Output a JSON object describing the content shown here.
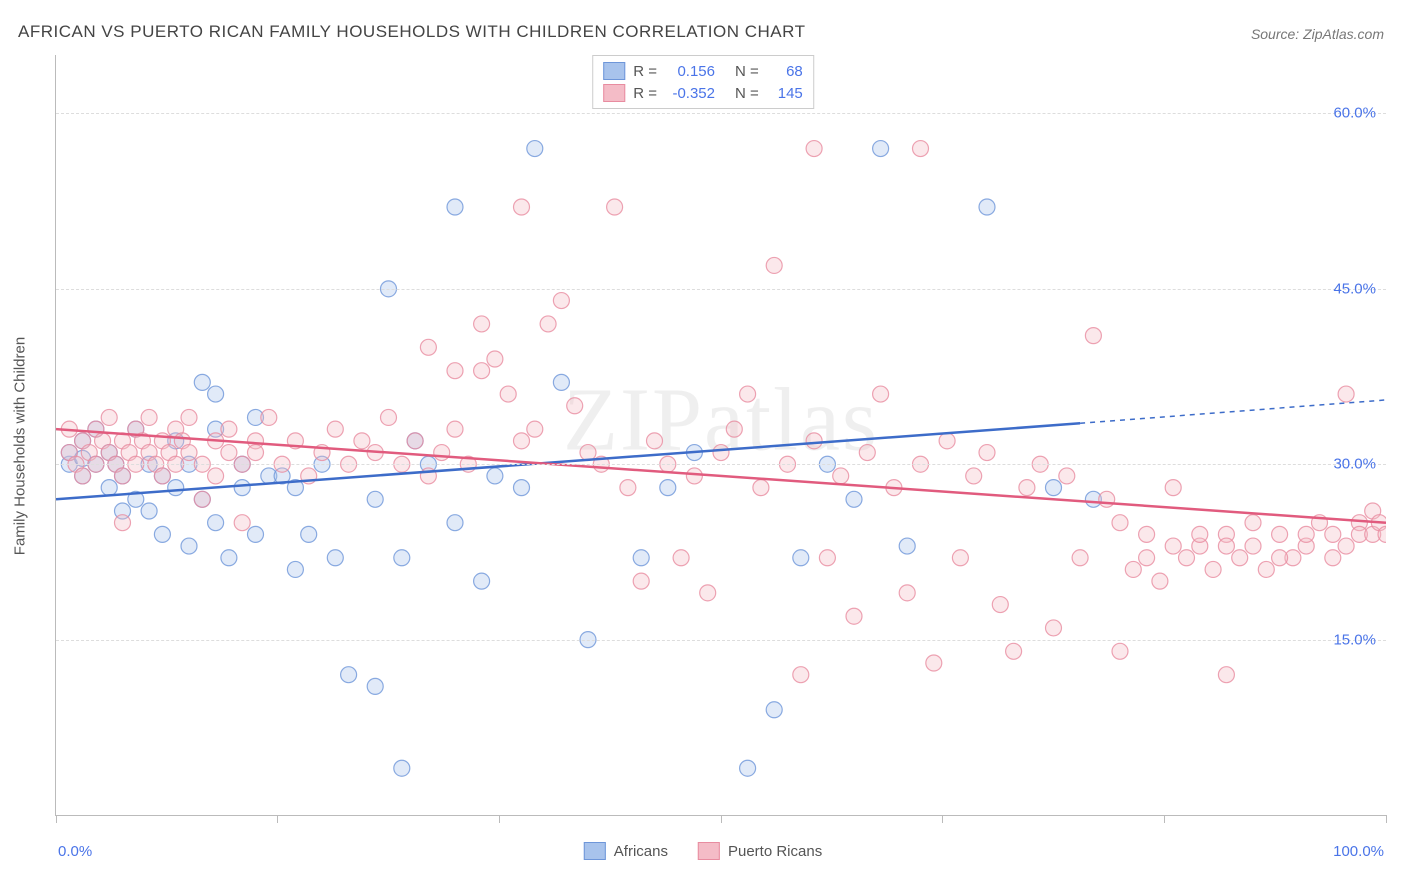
{
  "title": "AFRICAN VS PUERTO RICAN FAMILY HOUSEHOLDS WITH CHILDREN CORRELATION CHART",
  "source": "Source: ZipAtlas.com",
  "watermark": "ZIPatlas",
  "ylabel": "Family Households with Children",
  "chart": {
    "type": "scatter",
    "background_color": "#ffffff",
    "grid_color": "#dddddd",
    "axis_color": "#bbbbbb",
    "label_color": "#4a74e8",
    "text_color": "#555555",
    "xlim": [
      0,
      100
    ],
    "ylim": [
      0,
      65
    ],
    "yticks": [
      15,
      30,
      45,
      60
    ],
    "ytick_labels": [
      "15.0%",
      "30.0%",
      "45.0%",
      "60.0%"
    ],
    "xticks": [
      0,
      16.6,
      33.3,
      50,
      66.6,
      83.3,
      100
    ],
    "xtick_labels_shown": {
      "0": "0.0%",
      "100": "100.0%"
    },
    "marker_radius": 8,
    "series": [
      {
        "name": "Africans",
        "fill": "#a8c3ec",
        "stroke": "#6e96d9",
        "R": "0.156",
        "N": "68",
        "trend": {
          "x1": 0,
          "y1": 27,
          "x2": 77,
          "y2": 33.5,
          "x2_dash": 100,
          "y2_dash": 35.5,
          "color": "#3d6cc9",
          "width": 2.5
        },
        "points": [
          [
            1,
            30
          ],
          [
            1,
            31
          ],
          [
            2,
            29
          ],
          [
            2,
            32
          ],
          [
            2,
            30.5
          ],
          [
            3,
            30
          ],
          [
            3,
            33
          ],
          [
            4,
            28
          ],
          [
            4,
            31
          ],
          [
            4.5,
            30
          ],
          [
            5,
            29
          ],
          [
            5,
            26
          ],
          [
            6,
            27
          ],
          [
            6,
            33
          ],
          [
            7,
            26
          ],
          [
            7,
            30
          ],
          [
            8,
            24
          ],
          [
            8,
            29
          ],
          [
            9,
            28
          ],
          [
            9,
            32
          ],
          [
            10,
            30
          ],
          [
            10,
            23
          ],
          [
            11,
            27
          ],
          [
            11,
            37
          ],
          [
            12,
            25
          ],
          [
            12,
            36
          ],
          [
            12,
            33
          ],
          [
            13,
            22
          ],
          [
            14,
            28
          ],
          [
            14,
            30
          ],
          [
            15,
            24
          ],
          [
            15,
            34
          ],
          [
            16,
            29
          ],
          [
            17,
            29
          ],
          [
            18,
            21
          ],
          [
            18,
            28
          ],
          [
            19,
            24
          ],
          [
            20,
            30
          ],
          [
            21,
            22
          ],
          [
            22,
            12
          ],
          [
            24,
            11
          ],
          [
            24,
            27
          ],
          [
            25,
            45
          ],
          [
            26,
            22
          ],
          [
            26,
            4
          ],
          [
            27,
            32
          ],
          [
            28,
            30
          ],
          [
            30,
            52
          ],
          [
            30,
            25
          ],
          [
            32,
            20
          ],
          [
            33,
            29
          ],
          [
            35,
            28
          ],
          [
            36,
            57
          ],
          [
            38,
            37
          ],
          [
            40,
            15
          ],
          [
            44,
            22
          ],
          [
            46,
            28
          ],
          [
            48,
            31
          ],
          [
            52,
            4
          ],
          [
            54,
            9
          ],
          [
            56,
            22
          ],
          [
            58,
            30
          ],
          [
            60,
            27
          ],
          [
            62,
            57
          ],
          [
            64,
            23
          ],
          [
            70,
            52
          ],
          [
            75,
            28
          ],
          [
            78,
            27
          ]
        ]
      },
      {
        "name": "Puerto Ricans",
        "fill": "#f4bcc7",
        "stroke": "#e88ca0",
        "R": "-0.352",
        "N": "145",
        "trend": {
          "x1": 0,
          "y1": 33,
          "x2": 100,
          "y2": 25,
          "color": "#e15b7e",
          "width": 2.5
        },
        "points": [
          [
            1,
            31
          ],
          [
            1,
            33
          ],
          [
            1.5,
            30
          ],
          [
            2,
            32
          ],
          [
            2,
            29
          ],
          [
            2.5,
            31
          ],
          [
            3,
            33
          ],
          [
            3,
            30
          ],
          [
            3.5,
            32
          ],
          [
            4,
            31
          ],
          [
            4,
            34
          ],
          [
            4.5,
            30
          ],
          [
            5,
            32
          ],
          [
            5,
            29
          ],
          [
            5,
            25
          ],
          [
            5.5,
            31
          ],
          [
            6,
            33
          ],
          [
            6,
            30
          ],
          [
            6.5,
            32
          ],
          [
            7,
            31
          ],
          [
            7,
            34
          ],
          [
            7.5,
            30
          ],
          [
            8,
            32
          ],
          [
            8,
            29
          ],
          [
            8.5,
            31
          ],
          [
            9,
            33
          ],
          [
            9,
            30
          ],
          [
            9.5,
            32
          ],
          [
            10,
            31
          ],
          [
            10,
            34
          ],
          [
            11,
            30
          ],
          [
            11,
            27
          ],
          [
            12,
            32
          ],
          [
            12,
            29
          ],
          [
            13,
            31
          ],
          [
            13,
            33
          ],
          [
            14,
            30
          ],
          [
            14,
            25
          ],
          [
            15,
            32
          ],
          [
            15,
            31
          ],
          [
            16,
            34
          ],
          [
            17,
            30
          ],
          [
            18,
            32
          ],
          [
            19,
            29
          ],
          [
            20,
            31
          ],
          [
            21,
            33
          ],
          [
            22,
            30
          ],
          [
            23,
            32
          ],
          [
            24,
            31
          ],
          [
            25,
            34
          ],
          [
            26,
            30
          ],
          [
            27,
            32
          ],
          [
            28,
            29
          ],
          [
            29,
            31
          ],
          [
            30,
            33
          ],
          [
            31,
            30
          ],
          [
            32,
            38
          ],
          [
            33,
            39
          ],
          [
            34,
            36
          ],
          [
            35,
            32
          ],
          [
            36,
            33
          ],
          [
            37,
            42
          ],
          [
            38,
            44
          ],
          [
            39,
            35
          ],
          [
            40,
            31
          ],
          [
            41,
            30
          ],
          [
            42,
            52
          ],
          [
            43,
            28
          ],
          [
            44,
            20
          ],
          [
            45,
            32
          ],
          [
            46,
            30
          ],
          [
            47,
            22
          ],
          [
            48,
            29
          ],
          [
            49,
            19
          ],
          [
            50,
            31
          ],
          [
            51,
            33
          ],
          [
            52,
            36
          ],
          [
            53,
            28
          ],
          [
            54,
            47
          ],
          [
            55,
            30
          ],
          [
            56,
            12
          ],
          [
            57,
            32
          ],
          [
            58,
            22
          ],
          [
            59,
            29
          ],
          [
            60,
            17
          ],
          [
            61,
            31
          ],
          [
            62,
            36
          ],
          [
            63,
            28
          ],
          [
            64,
            19
          ],
          [
            65,
            30
          ],
          [
            66,
            13
          ],
          [
            67,
            32
          ],
          [
            68,
            22
          ],
          [
            69,
            29
          ],
          [
            70,
            31
          ],
          [
            71,
            18
          ],
          [
            72,
            14
          ],
          [
            73,
            28
          ],
          [
            74,
            30
          ],
          [
            75,
            16
          ],
          [
            76,
            29
          ],
          [
            77,
            22
          ],
          [
            78,
            41
          ],
          [
            79,
            27
          ],
          [
            80,
            14
          ],
          [
            81,
            21
          ],
          [
            82,
            24
          ],
          [
            83,
            20
          ],
          [
            84,
            28
          ],
          [
            85,
            22
          ],
          [
            86,
            23
          ],
          [
            87,
            21
          ],
          [
            88,
            24
          ],
          [
            89,
            22
          ],
          [
            90,
            23
          ],
          [
            91,
            21
          ],
          [
            92,
            24
          ],
          [
            93,
            22
          ],
          [
            94,
            23
          ],
          [
            95,
            25
          ],
          [
            96,
            24
          ],
          [
            97,
            36
          ],
          [
            97,
            23
          ],
          [
            98,
            25
          ],
          [
            98,
            24
          ],
          [
            99,
            26
          ],
          [
            99,
            24
          ],
          [
            99.5,
            25
          ],
          [
            100,
            24
          ],
          [
            96,
            22
          ],
          [
            94,
            24
          ],
          [
            92,
            22
          ],
          [
            90,
            25
          ],
          [
            88,
            23
          ],
          [
            86,
            24
          ],
          [
            84,
            23
          ],
          [
            82,
            22
          ],
          [
            80,
            25
          ],
          [
            88,
            12
          ],
          [
            65,
            57
          ],
          [
            57,
            57
          ],
          [
            35,
            52
          ],
          [
            28,
            40
          ],
          [
            30,
            38
          ],
          [
            32,
            42
          ]
        ]
      }
    ]
  },
  "legend_top": {
    "rows": [
      {
        "swatch_fill": "#a8c3ec",
        "swatch_stroke": "#6e96d9",
        "r_label": "R =",
        "r_val": "0.156",
        "n_label": "N =",
        "n_val": "68"
      },
      {
        "swatch_fill": "#f4bcc7",
        "swatch_stroke": "#e88ca0",
        "r_label": "R =",
        "r_val": "-0.352",
        "n_label": "N =",
        "n_val": "145"
      }
    ]
  },
  "legend_bottom": {
    "items": [
      {
        "swatch_fill": "#a8c3ec",
        "swatch_stroke": "#6e96d9",
        "label": "Africans"
      },
      {
        "swatch_fill": "#f4bcc7",
        "swatch_stroke": "#e88ca0",
        "label": "Puerto Ricans"
      }
    ]
  }
}
